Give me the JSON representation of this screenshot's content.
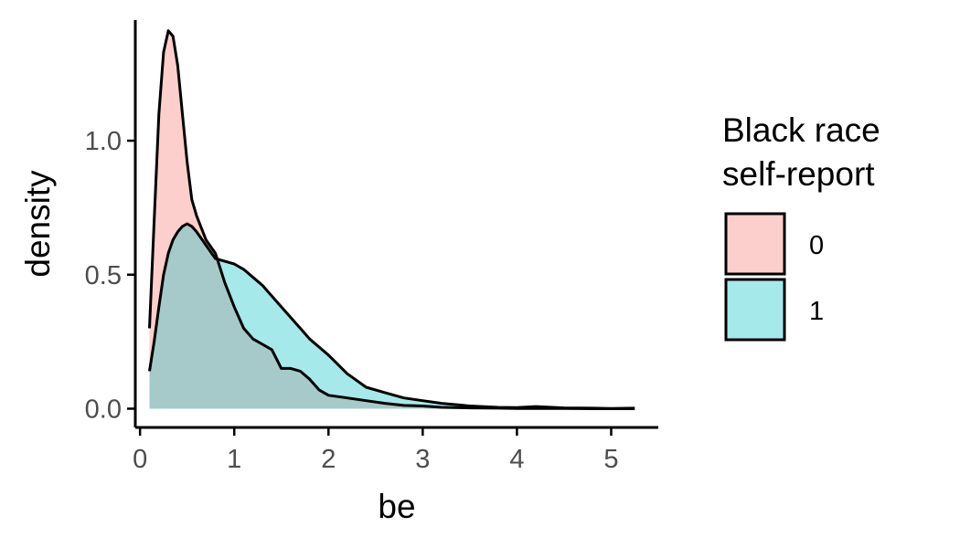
{
  "chart_data": {
    "type": "area",
    "xlabel": "be",
    "ylabel": "density",
    "xlim": [
      -0.05,
      5.5
    ],
    "ylim": [
      -0.07,
      1.45
    ],
    "x_ticks": [
      0,
      1,
      2,
      3,
      4,
      5
    ],
    "x_tick_labels": [
      "0",
      "1",
      "2",
      "3",
      "4",
      "5"
    ],
    "y_ticks": [
      0.0,
      0.5,
      1.0
    ],
    "y_tick_labels": [
      "0.0",
      "0.5",
      "1.0"
    ],
    "grid": false,
    "legend": {
      "title_lines": [
        "Black race",
        "self-report"
      ],
      "placement": "right"
    },
    "series": [
      {
        "name": "0",
        "fill": "#F8766D",
        "x": [
          0.1,
          0.15,
          0.2,
          0.25,
          0.3,
          0.35,
          0.4,
          0.45,
          0.5,
          0.55,
          0.6,
          0.7,
          0.8,
          0.9,
          1.0,
          1.1,
          1.2,
          1.3,
          1.4,
          1.5,
          1.6,
          1.7,
          1.8,
          1.9,
          2.0,
          2.2,
          2.4,
          2.6,
          2.8,
          3.0,
          3.2,
          3.5,
          3.8,
          4.0,
          4.2,
          4.5,
          4.8,
          5.0,
          5.25
        ],
        "y": [
          0.3,
          0.7,
          1.1,
          1.33,
          1.41,
          1.39,
          1.28,
          1.1,
          0.92,
          0.78,
          0.72,
          0.63,
          0.58,
          0.47,
          0.38,
          0.3,
          0.26,
          0.24,
          0.22,
          0.15,
          0.15,
          0.14,
          0.11,
          0.07,
          0.05,
          0.04,
          0.03,
          0.02,
          0.012,
          0.01,
          0.005,
          0.003,
          0.002,
          0.001,
          0.001,
          0.001,
          0.0,
          0.0,
          0.0
        ]
      },
      {
        "name": "1",
        "fill": "#00BFC4",
        "x": [
          0.1,
          0.15,
          0.2,
          0.25,
          0.3,
          0.35,
          0.4,
          0.45,
          0.5,
          0.55,
          0.6,
          0.7,
          0.8,
          0.9,
          1.0,
          1.1,
          1.2,
          1.3,
          1.4,
          1.5,
          1.6,
          1.7,
          1.8,
          1.9,
          2.0,
          2.2,
          2.4,
          2.6,
          2.8,
          3.0,
          3.2,
          3.5,
          3.8,
          4.0,
          4.2,
          4.5,
          4.8,
          5.0,
          5.25
        ],
        "y": [
          0.14,
          0.25,
          0.38,
          0.5,
          0.58,
          0.63,
          0.66,
          0.68,
          0.69,
          0.68,
          0.66,
          0.61,
          0.56,
          0.55,
          0.54,
          0.52,
          0.49,
          0.46,
          0.42,
          0.38,
          0.34,
          0.3,
          0.26,
          0.23,
          0.2,
          0.13,
          0.08,
          0.06,
          0.04,
          0.03,
          0.02,
          0.01,
          0.005,
          0.004,
          0.008,
          0.003,
          0.002,
          0.001,
          0.002
        ]
      }
    ]
  }
}
